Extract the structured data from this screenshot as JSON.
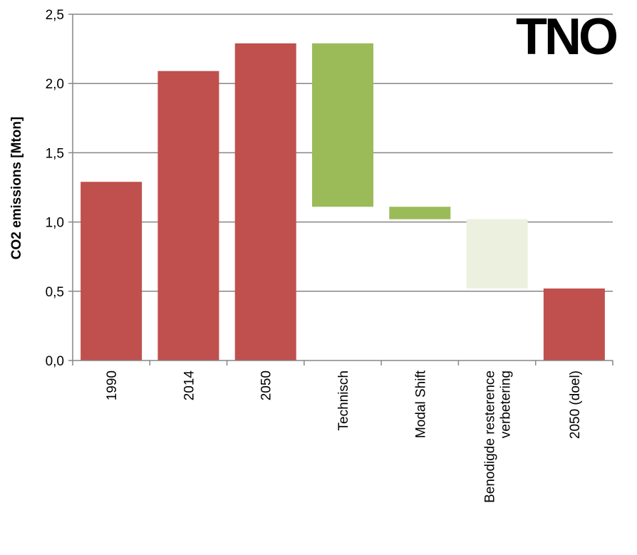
{
  "logo": {
    "text": "TNO",
    "color": "#000000"
  },
  "chart_data": {
    "type": "bar",
    "subtype": "waterfall",
    "title": "",
    "xlabel": "",
    "ylabel": "CO2 emissions [Mton]",
    "ylim": [
      0,
      2.5
    ],
    "yticks": [
      "0,0",
      "0,5",
      "1,0",
      "1,5",
      "2,0",
      "2,5"
    ],
    "ytick_values": [
      0,
      0.5,
      1.0,
      1.5,
      2.0,
      2.5
    ],
    "grid": true,
    "legend": "none",
    "categories": [
      {
        "lines": [
          "1990"
        ],
        "base": 0,
        "top": 1.29,
        "color": "#c0504d"
      },
      {
        "lines": [
          "2014"
        ],
        "base": 0,
        "top": 2.09,
        "color": "#c0504d"
      },
      {
        "lines": [
          "2050"
        ],
        "base": 0,
        "top": 2.29,
        "color": "#c0504d"
      },
      {
        "lines": [
          "Technisch"
        ],
        "base": 1.11,
        "top": 2.29,
        "color": "#9bbb59"
      },
      {
        "lines": [
          "Modal Shift"
        ],
        "base": 1.02,
        "top": 1.11,
        "color": "#9bbb59"
      },
      {
        "lines": [
          "Benodigde resterence",
          "verbetering"
        ],
        "base": 0.52,
        "top": 1.02,
        "color": "#ebf1de"
      },
      {
        "lines": [
          "2050 (doel)"
        ],
        "base": 0,
        "top": 0.52,
        "color": "#c0504d"
      }
    ],
    "colors": {
      "emissions": "#c0504d",
      "reduction": "#9bbb59",
      "required": "#ebf1de",
      "grid": "#868686",
      "axis": "#868686"
    }
  }
}
